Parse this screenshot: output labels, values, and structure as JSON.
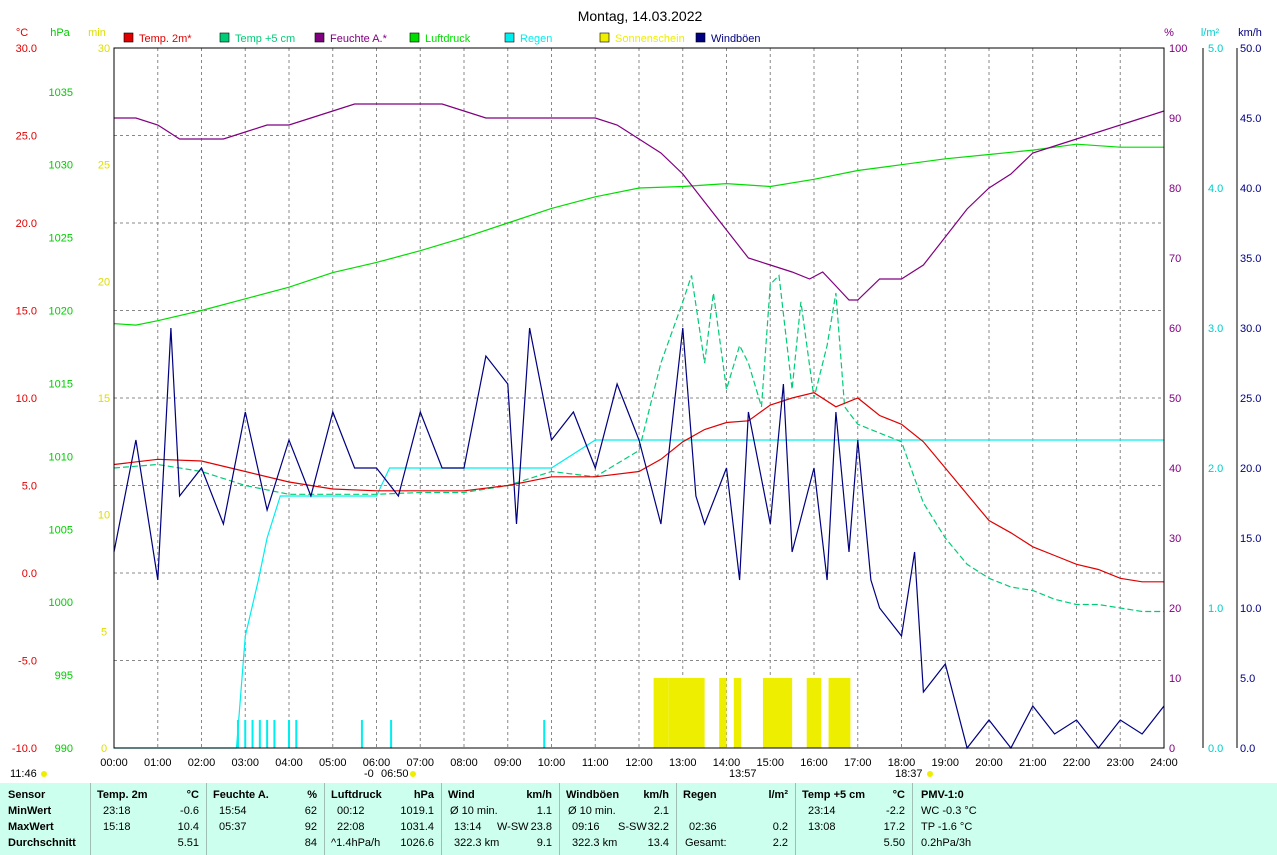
{
  "title": "Montag, 14.03.2022",
  "legend": [
    {
      "label": "Temp. 2m*",
      "color": "#e00000"
    },
    {
      "label": "Temp +5 cm",
      "color": "#00cc77"
    },
    {
      "label": "Feuchte A.*",
      "color": "#800080"
    },
    {
      "label": "Luftdruck",
      "color": "#00dd00"
    },
    {
      "label": "Regen",
      "color": "#00eeee"
    },
    {
      "label": "Sonnenschein",
      "color": "#eeee00"
    },
    {
      "label": "Windböen",
      "color": "#000080"
    }
  ],
  "axis_units": {
    "temp": "°C",
    "pressure": "hPa",
    "sun": "min",
    "humidity": "%",
    "rain": "l/m²",
    "wind": "km/h"
  },
  "markers": {
    "sunrise": "06:50",
    "noon": "13:57",
    "sunset": "18:37",
    "left_time": "11:46",
    "left_extra": "-0"
  },
  "chart_data": {
    "type": "line",
    "title": "Montag, 14.03.2022",
    "x_range": [
      "00:00",
      "24:00"
    ],
    "x_ticks": [
      "00:00",
      "01:00",
      "02:00",
      "03:00",
      "04:00",
      "05:00",
      "06:00",
      "07:00",
      "08:00",
      "09:00",
      "10:00",
      "11:00",
      "12:00",
      "13:00",
      "14:00",
      "15:00",
      "16:00",
      "17:00",
      "18:00",
      "19:00",
      "20:00",
      "21:00",
      "22:00",
      "23:00",
      "24:00"
    ],
    "axes": {
      "temp": {
        "unit": "°C",
        "range": [
          -10,
          30
        ],
        "ticks": [
          "30.0",
          "25.0",
          "20.0",
          "15.0",
          "10.0",
          "5.0",
          "0.0",
          "-5.0",
          "-10.0"
        ]
      },
      "pressure": {
        "unit": "hPa",
        "range": [
          990,
          1038
        ],
        "ticks": [
          "1035",
          "1030",
          "1025",
          "1020",
          "1015",
          "1010",
          "1005",
          "1000",
          "995",
          "990"
        ]
      },
      "sun": {
        "unit": "min",
        "range": [
          0,
          30
        ],
        "ticks": [
          "30",
          "25",
          "20",
          "15",
          "10",
          "5",
          "0"
        ]
      },
      "humidity": {
        "unit": "%",
        "range": [
          0,
          100
        ],
        "ticks": [
          "100",
          "90",
          "80",
          "70",
          "60",
          "50",
          "40",
          "30",
          "20",
          "10",
          "0"
        ]
      },
      "rain": {
        "unit": "l/m²",
        "range": [
          0,
          5
        ],
        "ticks": [
          "5.0",
          "4.0",
          "3.0",
          "2.0",
          "1.0",
          "0.0"
        ]
      },
      "wind": {
        "unit": "km/h",
        "range": [
          0,
          50
        ],
        "ticks": [
          "50.0",
          "45.0",
          "40.0",
          "35.0",
          "30.0",
          "25.0",
          "20.0",
          "15.0",
          "10.0",
          "5.0",
          "0.0"
        ]
      }
    },
    "series": [
      {
        "name": "Temp. 2m*",
        "axis": "temp",
        "color": "#e00000",
        "x": [
          0,
          1,
          2,
          3,
          4,
          5,
          6,
          7,
          8,
          9,
          10,
          11,
          12,
          12.5,
          13,
          13.5,
          14,
          14.5,
          15,
          15.5,
          16,
          16.5,
          17,
          17.5,
          18,
          18.5,
          19,
          19.5,
          20,
          20.5,
          21,
          21.5,
          22,
          22.5,
          23,
          23.5,
          24
        ],
        "y": [
          6.2,
          6.5,
          6.4,
          5.8,
          5.2,
          4.8,
          4.7,
          4.7,
          4.7,
          5.0,
          5.5,
          5.5,
          5.8,
          6.5,
          7.5,
          8.2,
          8.6,
          8.7,
          9.6,
          10.0,
          10.3,
          9.5,
          10.0,
          9.0,
          8.5,
          7.5,
          6.0,
          4.5,
          3.0,
          2.3,
          1.5,
          1.0,
          0.5,
          0.2,
          -0.3,
          -0.5,
          -0.5
        ]
      },
      {
        "name": "Temp +5 cm",
        "axis": "temp",
        "color": "#00cc77",
        "x": [
          0,
          1,
          2,
          3,
          4,
          5,
          6,
          7,
          8,
          9,
          10,
          11,
          12,
          12.5,
          13,
          13.2,
          13.5,
          13.7,
          14,
          14.3,
          14.5,
          14.8,
          15,
          15.2,
          15.5,
          15.7,
          16,
          16.3,
          16.5,
          16.7,
          17,
          17.5,
          18,
          18.5,
          19,
          19.5,
          20,
          20.5,
          21,
          21.5,
          22,
          22.5,
          23,
          23.5,
          24
        ],
        "y": [
          6.0,
          6.2,
          5.8,
          5.0,
          4.5,
          4.5,
          4.5,
          4.6,
          4.6,
          5.0,
          5.8,
          5.5,
          7.0,
          12.0,
          15.5,
          17.0,
          12.0,
          16.0,
          10.5,
          13.0,
          12.0,
          9.5,
          16.5,
          17.0,
          10.5,
          15.5,
          10.0,
          13.0,
          16.0,
          9.5,
          8.5,
          8.0,
          7.5,
          4.0,
          2.0,
          0.5,
          -0.3,
          -0.8,
          -1.0,
          -1.5,
          -1.8,
          -1.8,
          -2.0,
          -2.2,
          -2.2
        ]
      },
      {
        "name": "Feuchte A.*",
        "axis": "humidity",
        "color": "#800080",
        "x": [
          0,
          0.5,
          1,
          1.5,
          2,
          2.5,
          3,
          3.5,
          4,
          4.5,
          5,
          5.5,
          6,
          6.5,
          7,
          7.5,
          8,
          8.5,
          9,
          9.5,
          10,
          10.5,
          11,
          11.5,
          12,
          12.5,
          13,
          13.5,
          14,
          14.5,
          15,
          15.5,
          15.9,
          16.2,
          16.5,
          16.8,
          17,
          17.5,
          18,
          18.5,
          19,
          19.5,
          20,
          20.5,
          21,
          21.5,
          22,
          22.5,
          23,
          23.5,
          24
        ],
        "y": [
          90,
          90,
          89,
          87,
          87,
          87,
          88,
          89,
          89,
          90,
          91,
          92,
          92,
          92,
          92,
          92,
          91,
          90,
          90,
          90,
          90,
          90,
          90,
          89,
          87,
          85,
          82,
          78,
          74,
          70,
          69,
          68,
          67,
          68,
          66,
          64,
          64,
          67,
          67,
          69,
          73,
          77,
          80,
          82,
          85,
          86,
          87,
          88,
          89,
          90,
          91
        ]
      },
      {
        "name": "Luftdruck",
        "axis": "pressure",
        "color": "#00dd00",
        "x": [
          0,
          0.5,
          1,
          2,
          3,
          4,
          5,
          6,
          7,
          8,
          9,
          10,
          11,
          12,
          13,
          14,
          15,
          16,
          17,
          18,
          19,
          20,
          21,
          22,
          23,
          24
        ],
        "y": [
          1019.1,
          1019.0,
          1019.3,
          1020.0,
          1020.8,
          1021.6,
          1022.6,
          1023.3,
          1024.1,
          1025.0,
          1026.0,
          1027.0,
          1027.8,
          1028.4,
          1028.5,
          1028.7,
          1028.5,
          1029.0,
          1029.6,
          1030.0,
          1030.4,
          1030.7,
          1031.0,
          1031.4,
          1031.2,
          1031.2
        ]
      },
      {
        "name": "Regen",
        "axis": "rain",
        "color": "#00eeee",
        "x": [
          0,
          2.8,
          3.0,
          3.3,
          3.5,
          3.8,
          4,
          6,
          6.3,
          8,
          9,
          10,
          11,
          12,
          13,
          14,
          15,
          16,
          17,
          18,
          19,
          20,
          21,
          22,
          23,
          24
        ],
        "y": [
          0,
          0,
          0.8,
          1.2,
          1.5,
          1.8,
          1.8,
          1.8,
          2.0,
          2.0,
          2.0,
          2.0,
          2.2,
          2.2,
          2.2,
          2.2,
          2.2,
          2.2,
          2.2,
          2.2,
          2.2,
          2.2,
          2.2,
          2.2,
          2.2,
          2.2
        ]
      },
      {
        "name": "Windböen",
        "axis": "wind",
        "color": "#000080",
        "x": [
          0,
          0.5,
          1,
          1.3,
          1.5,
          2,
          2.5,
          3,
          3.5,
          4,
          4.5,
          5,
          5.5,
          6,
          6.5,
          7,
          7.5,
          8,
          8.5,
          9,
          9.2,
          9.5,
          10,
          10.5,
          11,
          11.5,
          12,
          12.5,
          13,
          13.3,
          13.5,
          14,
          14.3,
          14.5,
          15,
          15.3,
          15.5,
          16,
          16.3,
          16.5,
          16.8,
          17,
          17.3,
          17.5,
          18,
          18.3,
          18.5,
          19,
          19.5,
          20,
          20.5,
          21,
          21.5,
          22,
          22.5,
          23,
          23.5,
          24
        ],
        "y": [
          14,
          22,
          12,
          30,
          18,
          20,
          16,
          24,
          17,
          22,
          18,
          24,
          20,
          20,
          18,
          24,
          20,
          20,
          28,
          26,
          16,
          30,
          22,
          24,
          20,
          26,
          22,
          16,
          30,
          18,
          16,
          20,
          12,
          24,
          16,
          26,
          14,
          20,
          12,
          24,
          14,
          22,
          12,
          10,
          8,
          14,
          4,
          6,
          0,
          2,
          0,
          3,
          1,
          2,
          0,
          2,
          1,
          3
        ]
      }
    ],
    "sunshine_bars": [
      {
        "from": "12:20",
        "to": "12:40",
        "minutes": 3
      },
      {
        "from": "12:40",
        "to": "13:30",
        "minutes": 3
      },
      {
        "from": "13:50",
        "to": "14:00",
        "minutes": 3
      },
      {
        "from": "14:10",
        "to": "14:20",
        "minutes": 3
      },
      {
        "from": "14:50",
        "to": "15:30",
        "minutes": 3
      },
      {
        "from": "15:50",
        "to": "16:10",
        "minutes": 3
      },
      {
        "from": "16:20",
        "to": "16:50",
        "minutes": 3
      }
    ],
    "rain_ticks": [
      "02:50",
      "03:00",
      "03:10",
      "03:20",
      "03:30",
      "03:40",
      "04:00",
      "04:10",
      "06:20",
      "05:40",
      "09:50"
    ],
    "grid": true,
    "legend_position": "top"
  },
  "stats": {
    "labels": {
      "sensor": "Sensor",
      "min": "MinWert",
      "max": "MaxWert",
      "avg": "Durchschnitt"
    },
    "temp2m": {
      "head": "Temp. 2m",
      "unit": "°C",
      "min_time": "23:18",
      "min": "-0.6",
      "max_time": "15:18",
      "max": "10.4",
      "avg": "5.51"
    },
    "feuchte": {
      "head": "Feuchte A.",
      "unit": "%",
      "min_time": "15:54",
      "min": "62",
      "max_time": "05:37",
      "max": "92",
      "avg": "84"
    },
    "luftdruck": {
      "head": "Luftdruck",
      "unit": "hPa",
      "min_time": "00:12",
      "min": "1019.1",
      "max_time": "22:08",
      "max": "1031.4",
      "avg_label": "^1.4hPa/h",
      "avg": "1026.6"
    },
    "wind": {
      "head": "Wind",
      "unit": "km/h",
      "r1_label": "Ø 10 min.",
      "r1": "1.1",
      "r2_time": "13:14",
      "r2_dir": "W-SW",
      "r2": "23.8",
      "r3_label": "322.3 km",
      "r3": "9.1"
    },
    "windboeen": {
      "head": "Windböen",
      "unit": "km/h",
      "r1_label": "Ø 10 min.",
      "r1": "2.1",
      "r2_time": "09:16",
      "r2_dir": "S-SW",
      "r2": "32.2",
      "r3_label": "322.3 km",
      "r3": "13.4"
    },
    "regen": {
      "head": "Regen",
      "unit": "l/m²",
      "r2_time": "02:36",
      "r2": "0.2",
      "r3_label": "Gesamt:",
      "r3": "2.2"
    },
    "temp5cm": {
      "head": "Temp +5 cm",
      "unit": "°C",
      "min_time": "23:14",
      "min": "-2.2",
      "max_time": "13:08",
      "max": "17.2",
      "avg": "5.50"
    },
    "pmv": {
      "head": "PMV-1:0",
      "r1": "WC -0.3 °C",
      "r2": "TP -1.6 °C",
      "r3": "0.2hPa/3h"
    }
  }
}
